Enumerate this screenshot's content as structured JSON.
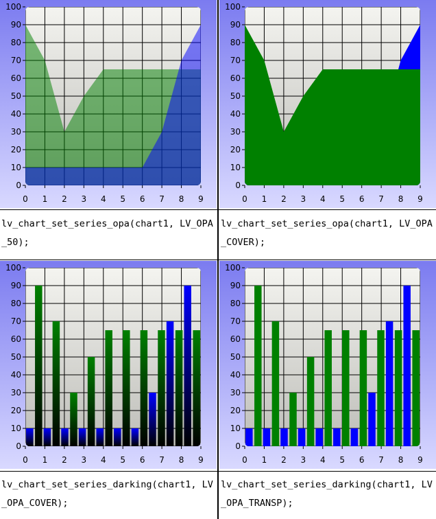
{
  "palette": {
    "panel_top": "#7b7bf0",
    "panel_bottom": "#d9d9ff",
    "plot_top": "#f4f4f0",
    "plot_bottom": "#bdbdb8",
    "series_green": "#008000",
    "series_blue": "#0000ff"
  },
  "chart_data": [
    {
      "type": "area",
      "opacity": 0.5,
      "darking": 0,
      "x": [
        0,
        1,
        2,
        3,
        4,
        5,
        6,
        7,
        8,
        9
      ],
      "ylim": [
        0,
        100
      ],
      "xlim": [
        0,
        9
      ],
      "y_ticks": [
        "0",
        "10",
        "20",
        "30",
        "40",
        "50",
        "60",
        "70",
        "80",
        "90",
        "100"
      ],
      "x_ticks": [
        "0",
        "1",
        "2",
        "3",
        "4",
        "5",
        "6",
        "7",
        "8",
        "9"
      ],
      "grid": true,
      "series": [
        {
          "color": "#008000",
          "values": [
            90,
            70,
            30,
            50,
            65,
            65,
            65,
            65,
            65,
            65
          ]
        },
        {
          "color": "#0000ff",
          "values": [
            10,
            10,
            10,
            10,
            10,
            10,
            10,
            30,
            70,
            90
          ]
        }
      ]
    },
    {
      "type": "area",
      "opacity": 1,
      "darking": 0,
      "x": [
        0,
        1,
        2,
        3,
        4,
        5,
        6,
        7,
        8,
        9
      ],
      "ylim": [
        0,
        100
      ],
      "xlim": [
        0,
        9
      ],
      "y_ticks": [
        "0",
        "10",
        "20",
        "30",
        "40",
        "50",
        "60",
        "70",
        "80",
        "90",
        "100"
      ],
      "x_ticks": [
        "0",
        "1",
        "2",
        "3",
        "4",
        "5",
        "6",
        "7",
        "8",
        "9"
      ],
      "grid": true,
      "series": [
        {
          "color": "#0000ff",
          "values": [
            10,
            10,
            10,
            10,
            10,
            10,
            10,
            30,
            70,
            90
          ]
        },
        {
          "color": "#008000",
          "values": [
            90,
            70,
            30,
            50,
            65,
            65,
            65,
            65,
            65,
            65
          ]
        }
      ]
    },
    {
      "type": "bar",
      "opacity": 1,
      "darking": 1,
      "x": [
        0,
        1,
        2,
        3,
        4,
        5,
        6,
        7,
        8,
        9
      ],
      "ylim": [
        0,
        100
      ],
      "xlim": [
        0,
        9
      ],
      "y_ticks": [
        "0",
        "10",
        "20",
        "30",
        "40",
        "50",
        "60",
        "70",
        "80",
        "90",
        "100"
      ],
      "x_ticks": [
        "0",
        "1",
        "2",
        "3",
        "4",
        "5",
        "6",
        "7",
        "8",
        "9"
      ],
      "grid": true,
      "series": [
        {
          "color": "#0000ff",
          "values": [
            10,
            10,
            10,
            10,
            10,
            10,
            10,
            30,
            70,
            90
          ]
        },
        {
          "color": "#008000",
          "values": [
            90,
            70,
            30,
            50,
            65,
            65,
            65,
            65,
            65,
            65
          ]
        }
      ]
    },
    {
      "type": "bar",
      "opacity": 1,
      "darking": 0,
      "x": [
        0,
        1,
        2,
        3,
        4,
        5,
        6,
        7,
        8,
        9
      ],
      "ylim": [
        0,
        100
      ],
      "xlim": [
        0,
        9
      ],
      "y_ticks": [
        "0",
        "10",
        "20",
        "30",
        "40",
        "50",
        "60",
        "70",
        "80",
        "90",
        "100"
      ],
      "x_ticks": [
        "0",
        "1",
        "2",
        "3",
        "4",
        "5",
        "6",
        "7",
        "8",
        "9"
      ],
      "grid": true,
      "series": [
        {
          "color": "#0000ff",
          "values": [
            10,
            10,
            10,
            10,
            10,
            10,
            10,
            30,
            70,
            90
          ]
        },
        {
          "color": "#008000",
          "values": [
            90,
            70,
            30,
            50,
            65,
            65,
            65,
            65,
            65,
            65
          ]
        }
      ]
    }
  ],
  "captions": [
    {
      "line1": "lv_chart_set_series_opa(chart1, LV_OPA",
      "line2": "_50);"
    },
    {
      "line1": "lv_chart_set_series_opa(chart1, LV_OPA",
      "line2": "_COVER);"
    },
    {
      "line1": "lv_chart_set_series_darking(chart1, LV",
      "line2": "_OPA_COVER);"
    },
    {
      "line1": "lv_chart_set_series_darking(chart1, LV",
      "line2": "_OPA_TRANSP);"
    }
  ]
}
